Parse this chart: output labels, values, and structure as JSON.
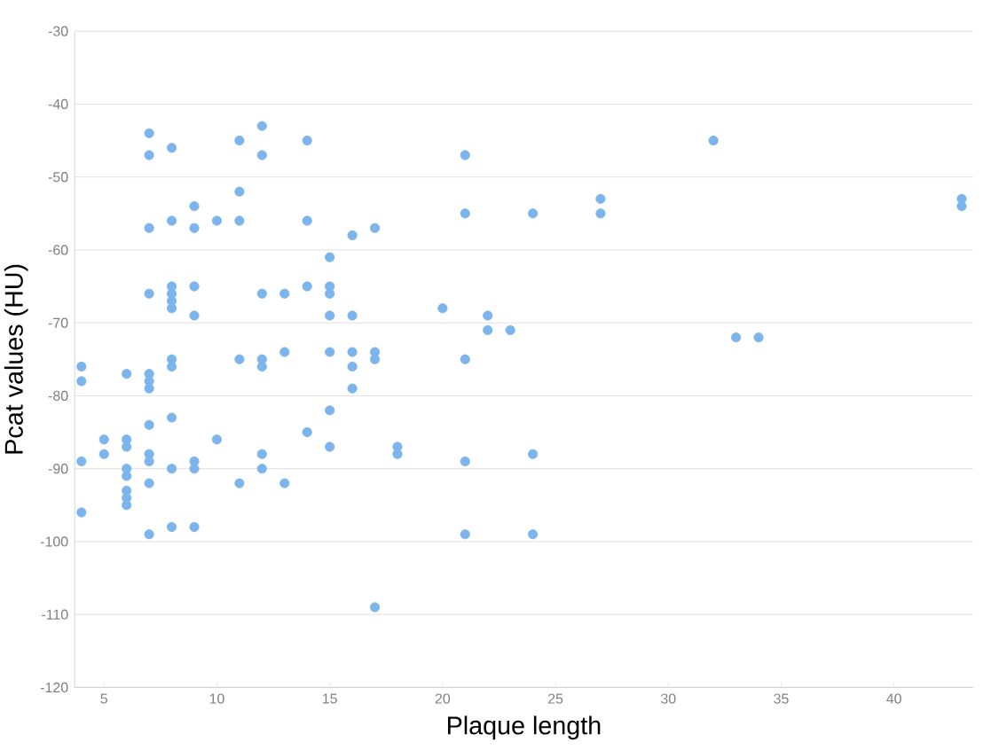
{
  "chart_data": {
    "type": "scatter",
    "xlabel": "Plaque length",
    "ylabel": "Pcat values (HU)",
    "xlim": [
      3.7,
      43.5
    ],
    "ylim": [
      -120,
      -30
    ],
    "xticks": [
      5,
      10,
      15,
      20,
      25,
      30,
      35,
      40
    ],
    "yticks": [
      -120,
      -110,
      -100,
      -90,
      -80,
      -70,
      -60,
      -50,
      -40,
      -30
    ],
    "grid": "y",
    "marker": "circle",
    "series": [
      {
        "color": "#7cb5ec",
        "x": [
          4,
          4,
          4,
          4,
          5,
          5,
          6,
          6,
          6,
          6,
          6,
          6,
          6,
          6,
          7,
          7,
          7,
          7,
          7,
          7,
          7,
          7,
          7,
          7,
          7,
          7,
          8,
          8,
          8,
          8,
          8,
          8,
          8,
          8,
          8,
          8,
          8,
          9,
          9,
          9,
          9,
          9,
          9,
          9,
          10,
          10,
          11,
          11,
          11,
          11,
          11,
          12,
          12,
          12,
          12,
          12,
          12,
          12,
          13,
          13,
          13,
          14,
          14,
          14,
          14,
          15,
          15,
          15,
          15,
          15,
          15,
          15,
          16,
          16,
          16,
          16,
          16,
          17,
          17,
          17,
          17,
          18,
          18,
          20,
          21,
          21,
          21,
          21,
          21,
          22,
          22,
          23,
          24,
          24,
          24,
          27,
          27,
          32,
          33,
          34,
          43,
          43
        ],
        "values": [
          -76,
          -78,
          -89,
          -96,
          -86,
          -88,
          -77,
          -86,
          -87,
          -90,
          -91,
          -93,
          -94,
          -95,
          -44,
          -47,
          -57,
          -66,
          -77,
          -78,
          -79,
          -84,
          -88,
          -89,
          -92,
          -99,
          -46,
          -56,
          -65,
          -66,
          -67,
          -68,
          -75,
          -76,
          -83,
          -90,
          -98,
          -54,
          -57,
          -65,
          -69,
          -89,
          -90,
          -98,
          -56,
          -86,
          -45,
          -52,
          -56,
          -75,
          -92,
          -43,
          -47,
          -66,
          -75,
          -76,
          -88,
          -90,
          -66,
          -74,
          -92,
          -45,
          -56,
          -65,
          -85,
          -61,
          -65,
          -66,
          -69,
          -74,
          -82,
          -87,
          -58,
          -69,
          -74,
          -76,
          -79,
          -57,
          -74,
          -75,
          -109,
          -87,
          -88,
          -68,
          -47,
          -55,
          -75,
          -89,
          -99,
          -69,
          -71,
          -71,
          -55,
          -88,
          -99,
          -53,
          -55,
          -45,
          -72,
          -72,
          -53,
          -54
        ]
      }
    ]
  }
}
